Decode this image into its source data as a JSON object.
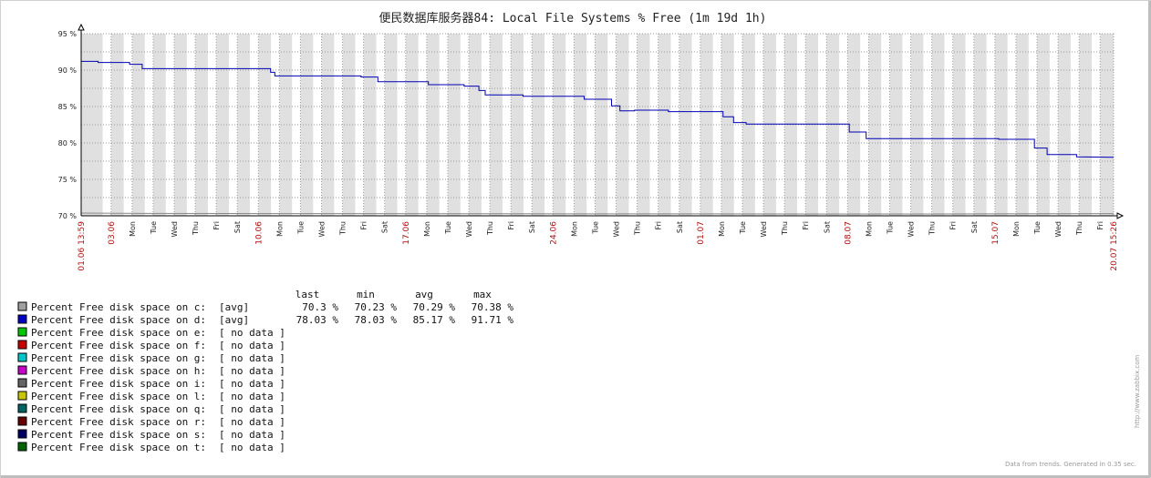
{
  "chart_data": {
    "type": "line",
    "title": "便民数据库服务器84: Local File Systems % Free (1m 19d 1h)",
    "ylim": [
      70,
      95
    ],
    "yticks": [
      "70 %",
      "75 %",
      "80 %",
      "85 %",
      "90 %",
      "95 %"
    ],
    "x_range": {
      "start": "01.06 13:59",
      "end": "20.07 15:26"
    },
    "x_ticks": [
      {
        "label": "01.06 13:59",
        "day": 0.0,
        "red": true
      },
      {
        "label": "03.06",
        "day": 1.42,
        "red": true
      },
      {
        "label": "Mon",
        "day": 2.42
      },
      {
        "label": "Tue",
        "day": 3.42
      },
      {
        "label": "Wed",
        "day": 4.42
      },
      {
        "label": "Thu",
        "day": 5.42
      },
      {
        "label": "Fri",
        "day": 6.42
      },
      {
        "label": "Sat",
        "day": 7.42
      },
      {
        "label": "10.06",
        "day": 8.42,
        "red": true
      },
      {
        "label": "Mon",
        "day": 9.42
      },
      {
        "label": "Tue",
        "day": 10.42
      },
      {
        "label": "Wed",
        "day": 11.42
      },
      {
        "label": "Thu",
        "day": 12.42
      },
      {
        "label": "Fri",
        "day": 13.42
      },
      {
        "label": "Sat",
        "day": 14.42
      },
      {
        "label": "17.06",
        "day": 15.42,
        "red": true
      },
      {
        "label": "Mon",
        "day": 16.42
      },
      {
        "label": "Tue",
        "day": 17.42
      },
      {
        "label": "Wed",
        "day": 18.42
      },
      {
        "label": "Thu",
        "day": 19.42
      },
      {
        "label": "Fri",
        "day": 20.42
      },
      {
        "label": "Sat",
        "day": 21.42
      },
      {
        "label": "24.06",
        "day": 22.42,
        "red": true
      },
      {
        "label": "Mon",
        "day": 23.42
      },
      {
        "label": "Tue",
        "day": 24.42
      },
      {
        "label": "Wed",
        "day": 25.42
      },
      {
        "label": "Thu",
        "day": 26.42
      },
      {
        "label": "Fri",
        "day": 27.42
      },
      {
        "label": "Sat",
        "day": 28.42
      },
      {
        "label": "01.07",
        "day": 29.42,
        "red": true
      },
      {
        "label": "Mon",
        "day": 30.42
      },
      {
        "label": "Tue",
        "day": 31.42
      },
      {
        "label": "Wed",
        "day": 32.42
      },
      {
        "label": "Thu",
        "day": 33.42
      },
      {
        "label": "Fri",
        "day": 34.42
      },
      {
        "label": "Sat",
        "day": 35.42
      },
      {
        "label": "08.07",
        "day": 36.42,
        "red": true
      },
      {
        "label": "Mon",
        "day": 37.42
      },
      {
        "label": "Tue",
        "day": 38.42
      },
      {
        "label": "Wed",
        "day": 39.42
      },
      {
        "label": "Thu",
        "day": 40.42
      },
      {
        "label": "Fri",
        "day": 41.42
      },
      {
        "label": "Sat",
        "day": 42.42
      },
      {
        "label": "15.07",
        "day": 43.42,
        "red": true
      },
      {
        "label": "Mon",
        "day": 44.42
      },
      {
        "label": "Tue",
        "day": 45.42
      },
      {
        "label": "Wed",
        "day": 46.42
      },
      {
        "label": "Thu",
        "day": 47.42
      },
      {
        "label": "Fri",
        "day": 48.42
      },
      {
        "label": "20.07 15:26",
        "day": 49.06,
        "red": true
      }
    ],
    "series": [
      {
        "name": "Percent Free disk space on c:",
        "color": "#888888",
        "points": [
          [
            0,
            70.38
          ],
          [
            2.8,
            70.33
          ],
          [
            9.5,
            70.3
          ],
          [
            20,
            70.28
          ],
          [
            30,
            70.26
          ],
          [
            40,
            70.25
          ],
          [
            49.06,
            70.3
          ]
        ]
      },
      {
        "name": "Percent Free disk space on d:",
        "color": "#0000b4",
        "points": [
          [
            0,
            91.2
          ],
          [
            0.8,
            91.2
          ],
          [
            0.8,
            91.05
          ],
          [
            2.3,
            91.05
          ],
          [
            2.3,
            90.8
          ],
          [
            2.9,
            90.8
          ],
          [
            2.9,
            90.2
          ],
          [
            9.0,
            90.2
          ],
          [
            9.0,
            89.7
          ],
          [
            9.2,
            89.7
          ],
          [
            9.2,
            89.2
          ],
          [
            13.3,
            89.2
          ],
          [
            13.3,
            89.05
          ],
          [
            14.1,
            89.05
          ],
          [
            14.1,
            88.4
          ],
          [
            16.5,
            88.4
          ],
          [
            16.5,
            88.0
          ],
          [
            18.2,
            88.0
          ],
          [
            18.2,
            87.8
          ],
          [
            18.9,
            87.8
          ],
          [
            18.9,
            87.2
          ],
          [
            19.2,
            87.2
          ],
          [
            19.2,
            86.6
          ],
          [
            21.0,
            86.6
          ],
          [
            21.0,
            86.4
          ],
          [
            23.9,
            86.4
          ],
          [
            23.9,
            86.0
          ],
          [
            25.2,
            86.0
          ],
          [
            25.2,
            85.1
          ],
          [
            25.6,
            85.1
          ],
          [
            25.6,
            84.4
          ],
          [
            26.3,
            84.4
          ],
          [
            26.3,
            84.5
          ],
          [
            27.9,
            84.5
          ],
          [
            27.9,
            84.3
          ],
          [
            30.5,
            84.3
          ],
          [
            30.5,
            83.6
          ],
          [
            31.0,
            83.6
          ],
          [
            31.0,
            82.8
          ],
          [
            31.6,
            82.8
          ],
          [
            31.6,
            82.6
          ],
          [
            36.5,
            82.6
          ],
          [
            36.5,
            81.5
          ],
          [
            37.3,
            81.5
          ],
          [
            37.3,
            80.6
          ],
          [
            43.6,
            80.6
          ],
          [
            43.6,
            80.5
          ],
          [
            45.3,
            80.5
          ],
          [
            45.3,
            79.3
          ],
          [
            45.9,
            79.3
          ],
          [
            45.9,
            78.4
          ],
          [
            47.3,
            78.4
          ],
          [
            47.3,
            78.1
          ],
          [
            49.06,
            78.03
          ]
        ]
      }
    ]
  },
  "legend": {
    "headers": {
      "last": "last",
      "min": "min",
      "avg": "avg",
      "max": "max"
    },
    "items": [
      {
        "label": "Percent Free disk space on c:",
        "func": "[avg]",
        "last": "70.3 %",
        "min": "70.23 %",
        "avg": "70.29 %",
        "max": "70.38 %",
        "color": "#a0a0a0"
      },
      {
        "label": "Percent Free disk space on d:",
        "func": "[avg]",
        "last": "78.03 %",
        "min": "78.03 %",
        "avg": "85.17 %",
        "max": "91.71 %",
        "color": "#0000c8"
      },
      {
        "label": "Percent Free disk space on e:",
        "func": "[ no data ]",
        "color": "#00c800"
      },
      {
        "label": "Percent Free disk space on f:",
        "func": "[ no data ]",
        "color": "#c80000"
      },
      {
        "label": "Percent Free disk space on g:",
        "func": "[ no data ]",
        "color": "#00c8c8"
      },
      {
        "label": "Percent Free disk space on h:",
        "func": "[ no data ]",
        "color": "#c800c8"
      },
      {
        "label": "Percent Free disk space on i:",
        "func": "[ no data ]",
        "color": "#646464"
      },
      {
        "label": "Percent Free disk space on l:",
        "func": "[ no data ]",
        "color": "#c8c800"
      },
      {
        "label": "Percent Free disk space on q:",
        "func": "[ no data ]",
        "color": "#006464"
      },
      {
        "label": "Percent Free disk space on r:",
        "func": "[ no data ]",
        "color": "#640000"
      },
      {
        "label": "Percent Free disk space on s:",
        "func": "[ no data ]",
        "color": "#000064"
      },
      {
        "label": "Percent Free disk space on t:",
        "func": "[ no data ]",
        "color": "#006400"
      }
    ]
  },
  "footer": {
    "generated": "Data from trends. Generated in 0.35 sec.",
    "watermark": "http://www.zabbix.com"
  }
}
